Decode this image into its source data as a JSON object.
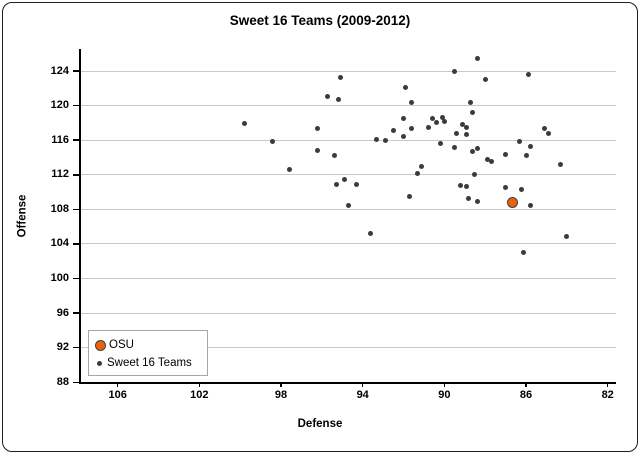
{
  "chart_data": {
    "type": "scatter",
    "title": "Sweet 16 Teams (2009-2012)",
    "xlabel": "Defense",
    "ylabel": "Offense",
    "x_axis": {
      "ticks": [
        106,
        102,
        98,
        94,
        90,
        86,
        82
      ],
      "reversed": true,
      "range_shown": [
        108,
        81.5
      ]
    },
    "y_axis": {
      "ticks": [
        124,
        120,
        112,
        116,
        108,
        104,
        100,
        96,
        92,
        88
      ],
      "range_shown": [
        88,
        126.5
      ]
    },
    "grid": "horizontal-only",
    "legend": {
      "position": "bottom-left-inside",
      "entries": [
        {
          "label": "OSU",
          "color": "#e8650d"
        },
        {
          "label": "Sweet 16 Teams",
          "color": "#3b3b3b"
        }
      ]
    },
    "series": [
      {
        "name": "OSU",
        "color": "#e8650d",
        "marker_diameter_px": 9,
        "points": [
          [
            86.7,
            108.9
          ]
        ]
      },
      {
        "name": "Sweet 16 Teams",
        "color": "#3b3b3b",
        "marker_diameter_px": 5,
        "points": [
          [
            99.8,
            117.9
          ],
          [
            95.1,
            123.2
          ],
          [
            95.7,
            121.0
          ],
          [
            95.2,
            120.7
          ],
          [
            91.9,
            122.1
          ],
          [
            91.6,
            120.4
          ],
          [
            96.2,
            117.3
          ],
          [
            98.4,
            115.8
          ],
          [
            93.3,
            116.1
          ],
          [
            92.9,
            116.0
          ],
          [
            92.5,
            117.1
          ],
          [
            92.0,
            118.5
          ],
          [
            91.6,
            117.4
          ],
          [
            92.0,
            116.4
          ],
          [
            96.2,
            114.8
          ],
          [
            95.4,
            114.2
          ],
          [
            88.4,
            125.4
          ],
          [
            89.5,
            124.0
          ],
          [
            85.9,
            123.6
          ],
          [
            88.0,
            123.0
          ],
          [
            88.7,
            120.4
          ],
          [
            88.6,
            119.2
          ],
          [
            90.6,
            118.5
          ],
          [
            90.1,
            118.6
          ],
          [
            90.4,
            118.1
          ],
          [
            90.0,
            118.2
          ],
          [
            90.8,
            117.5
          ],
          [
            89.1,
            117.8
          ],
          [
            88.9,
            117.5
          ],
          [
            89.4,
            116.8
          ],
          [
            88.9,
            116.6
          ],
          [
            85.1,
            117.3
          ],
          [
            84.9,
            116.8
          ],
          [
            90.2,
            115.6
          ],
          [
            89.5,
            115.1
          ],
          [
            86.3,
            115.9
          ],
          [
            88.6,
            114.7
          ],
          [
            88.4,
            115.0
          ],
          [
            87.9,
            113.8
          ],
          [
            87.7,
            113.5
          ],
          [
            87.0,
            114.3
          ],
          [
            85.8,
            115.3
          ],
          [
            86.0,
            114.2
          ],
          [
            97.6,
            112.6
          ],
          [
            95.3,
            110.9
          ],
          [
            94.9,
            111.5
          ],
          [
            94.3,
            110.9
          ],
          [
            91.7,
            109.5
          ],
          [
            94.7,
            108.4
          ],
          [
            93.6,
            105.2
          ],
          [
            91.1,
            113.0
          ],
          [
            91.3,
            112.1
          ],
          [
            84.3,
            113.2
          ],
          [
            88.5,
            112.0
          ],
          [
            89.2,
            110.8
          ],
          [
            88.9,
            110.6
          ],
          [
            88.8,
            109.2
          ],
          [
            88.4,
            108.9
          ],
          [
            87.0,
            110.5
          ],
          [
            86.2,
            110.3
          ],
          [
            85.8,
            108.4
          ],
          [
            84.0,
            104.9
          ],
          [
            86.1,
            103.0
          ]
        ]
      }
    ]
  },
  "colors": {
    "grid": "#c9c9c9",
    "axis": "#000000",
    "legend_border": "#a6a6a6",
    "osu_marker_fill": "#e8650d",
    "osu_marker_edge": "#404040",
    "gray_marker": "#3b3b3b",
    "window_border": "#1f1f1f"
  }
}
